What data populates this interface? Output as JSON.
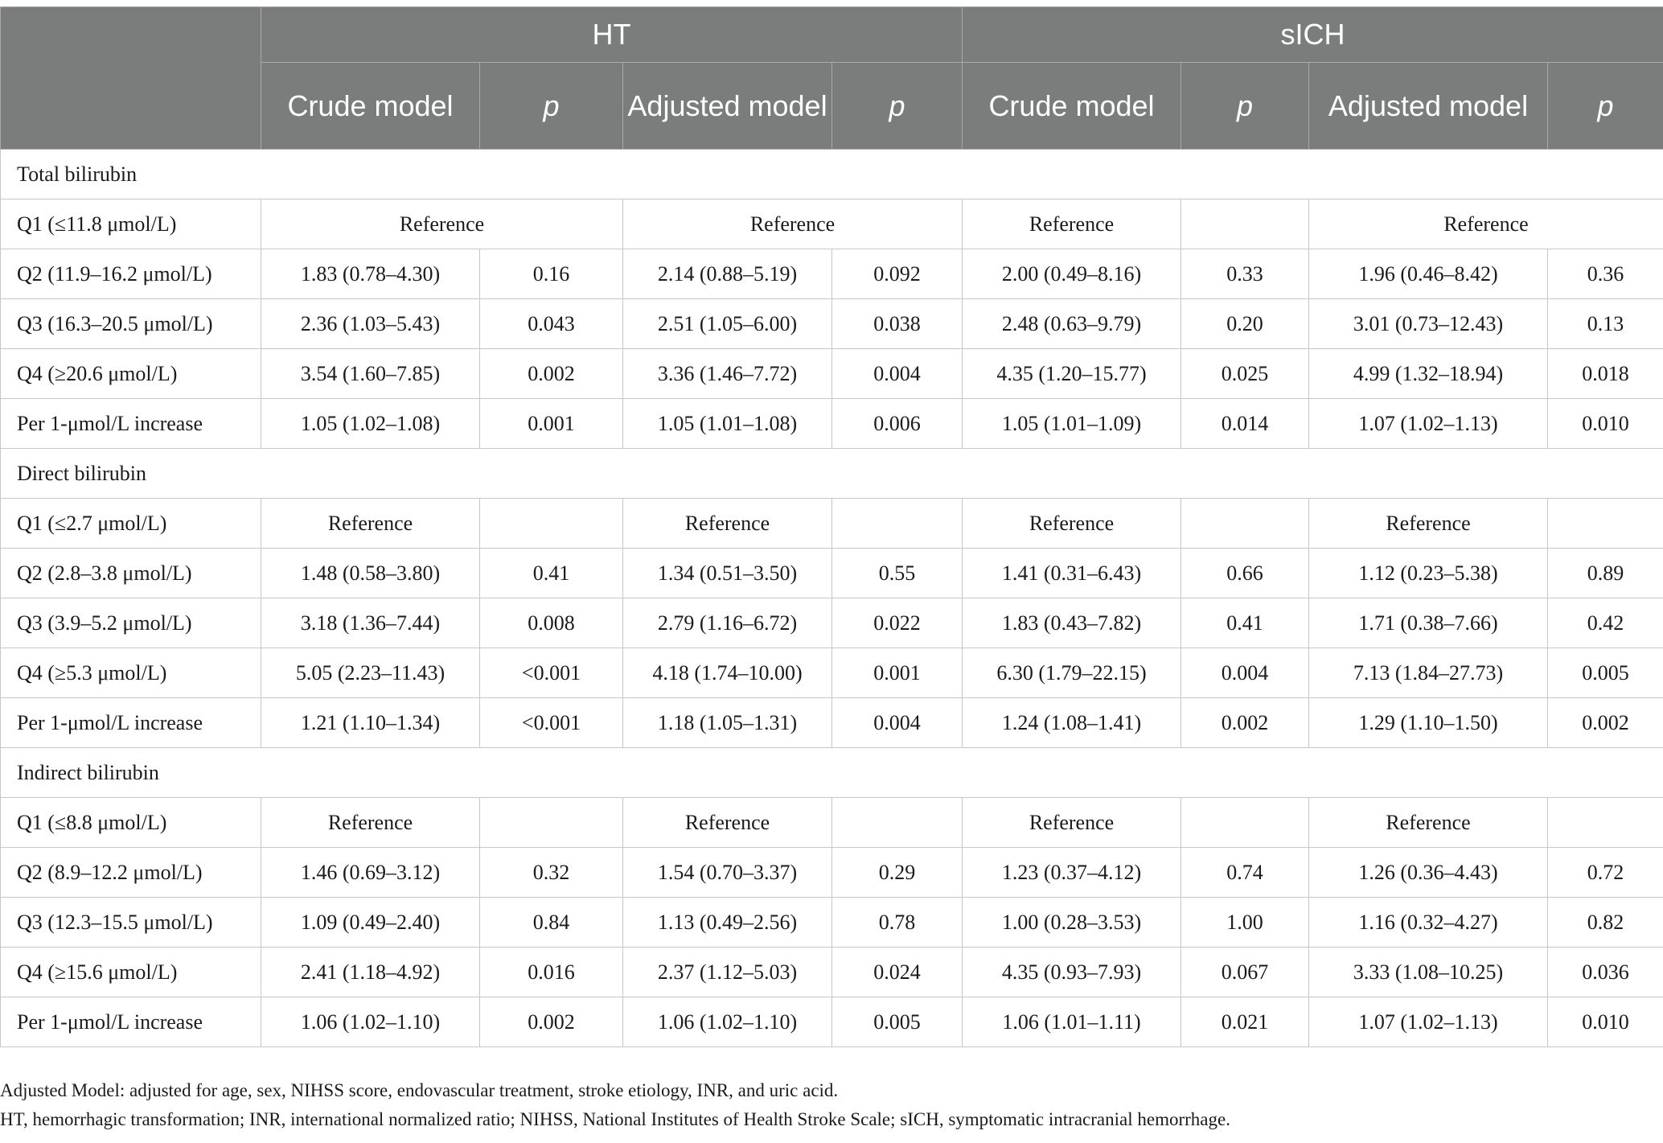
{
  "header": {
    "groups": [
      "HT",
      "sICH"
    ],
    "columns": [
      "Crude model",
      "p",
      "Adjusted model",
      "p",
      "Crude model",
      "p",
      "Adjusted model",
      "p"
    ]
  },
  "sections": [
    {
      "title": "Total bilirubin",
      "rows": [
        {
          "label": "Q1 (≤11.8 μmol/L)",
          "ht_ref": "Reference",
          "ht_adj_ref": "Reference",
          "sich_crude": "Reference",
          "sich_adj_ref": "Reference"
        },
        {
          "label": "Q2 (11.9–16.2 μmol/L)",
          "values": [
            "1.83 (0.78–4.30)",
            "0.16",
            "2.14 (0.88–5.19)",
            "0.092",
            "2.00 (0.49–8.16)",
            "0.33",
            "1.96 (0.46–8.42)",
            "0.36"
          ]
        },
        {
          "label": "Q3 (16.3–20.5 μmol/L)",
          "values": [
            "2.36 (1.03–5.43)",
            "0.043",
            "2.51 (1.05–6.00)",
            "0.038",
            "2.48 (0.63–9.79)",
            "0.20",
            "3.01 (0.73–12.43)",
            "0.13"
          ]
        },
        {
          "label": "Q4 (≥20.6 μmol/L)",
          "values": [
            "3.54 (1.60–7.85)",
            "0.002",
            "3.36 (1.46–7.72)",
            "0.004",
            "4.35 (1.20–15.77)",
            "0.025",
            "4.99 (1.32–18.94)",
            "0.018"
          ]
        },
        {
          "label": "Per 1-μmol/L increase",
          "values": [
            "1.05 (1.02–1.08)",
            "0.001",
            "1.05 (1.01–1.08)",
            "0.006",
            "1.05 (1.01–1.09)",
            "0.014",
            "1.07 (1.02–1.13)",
            "0.010"
          ]
        }
      ]
    },
    {
      "title": "Direct bilirubin",
      "rows": [
        {
          "label": "Q1 (≤2.7 μmol/L)",
          "values": [
            "Reference",
            "",
            "Reference",
            "",
            "Reference",
            "",
            "Reference",
            ""
          ]
        },
        {
          "label": "Q2 (2.8–3.8 μmol/L)",
          "values": [
            "1.48 (0.58–3.80)",
            "0.41",
            "1.34 (0.51–3.50)",
            "0.55",
            "1.41 (0.31–6.43)",
            "0.66",
            "1.12 (0.23–5.38)",
            "0.89"
          ]
        },
        {
          "label": "Q3 (3.9–5.2 μmol/L)",
          "values": [
            "3.18 (1.36–7.44)",
            "0.008",
            "2.79 (1.16–6.72)",
            "0.022",
            "1.83 (0.43–7.82)",
            "0.41",
            "1.71 (0.38–7.66)",
            "0.42"
          ]
        },
        {
          "label": "Q4 (≥5.3 μmol/L)",
          "values": [
            "5.05 (2.23–11.43)",
            "<0.001",
            "4.18 (1.74–10.00)",
            "0.001",
            "6.30 (1.79–22.15)",
            "0.004",
            "7.13 (1.84–27.73)",
            "0.005"
          ]
        },
        {
          "label": "Per 1-μmol/L increase",
          "values": [
            "1.21 (1.10–1.34)",
            "<0.001",
            "1.18 (1.05–1.31)",
            "0.004",
            "1.24 (1.08–1.41)",
            "0.002",
            "1.29 (1.10–1.50)",
            "0.002"
          ]
        }
      ]
    },
    {
      "title": "Indirect bilirubin",
      "rows": [
        {
          "label": "Q1 (≤8.8 μmol/L)",
          "values": [
            "Reference",
            "",
            "Reference",
            "",
            "Reference",
            "",
            "Reference",
            ""
          ]
        },
        {
          "label": "Q2 (8.9–12.2 μmol/L)",
          "values": [
            "1.46 (0.69–3.12)",
            "0.32",
            "1.54 (0.70–3.37)",
            "0.29",
            "1.23 (0.37–4.12)",
            "0.74",
            "1.26 (0.36–4.43)",
            "0.72"
          ]
        },
        {
          "label": "Q3 (12.3–15.5 μmol/L)",
          "values": [
            "1.09 (0.49–2.40)",
            "0.84",
            "1.13 (0.49–2.56)",
            "0.78",
            "1.00 (0.28–3.53)",
            "1.00",
            "1.16 (0.32–4.27)",
            "0.82"
          ]
        },
        {
          "label": "Q4 (≥15.6 μmol/L)",
          "values": [
            "2.41 (1.18–4.92)",
            "0.016",
            "2.37 (1.12–5.03)",
            "0.024",
            "4.35 (0.93–7.93)",
            "0.067",
            "3.33 (1.08–10.25)",
            "0.036"
          ]
        },
        {
          "label": "Per 1-μmol/L increase",
          "values": [
            "1.06 (1.02–1.10)",
            "0.002",
            "1.06 (1.02–1.10)",
            "0.005",
            "1.06 (1.01–1.11)",
            "0.021",
            "1.07 (1.02–1.13)",
            "0.010"
          ]
        }
      ]
    }
  ],
  "footnotes": [
    "Adjusted Model: adjusted for age, sex, NIHSS score, endovascular treatment, stroke etiology, INR, and uric acid.",
    "HT, hemorrhagic transformation; INR, international normalized ratio; NIHSS, National Institutes of Health Stroke Scale; sICH, symptomatic intracranial hemorrhage."
  ]
}
